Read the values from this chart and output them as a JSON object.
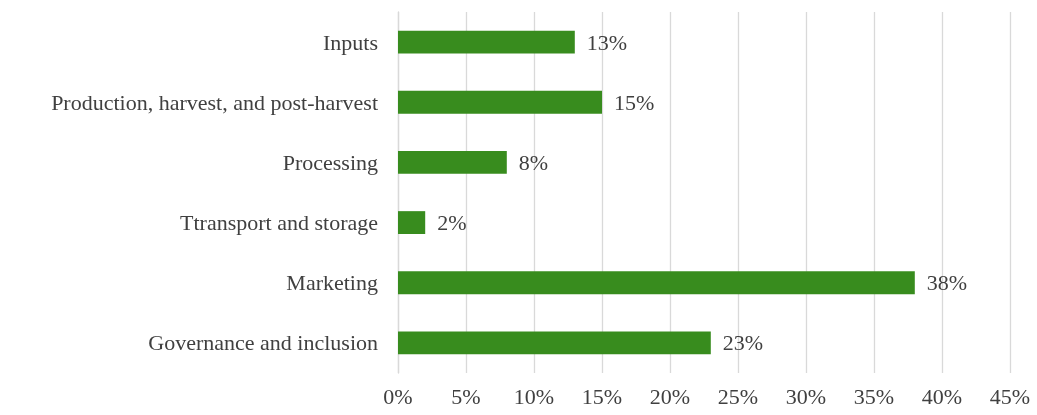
{
  "chart_data": {
    "type": "bar",
    "orientation": "horizontal",
    "categories": [
      "Inputs",
      "Production, harvest, and post-harvest",
      "Processing",
      "Ttransport and storage",
      "Marketing",
      "Governance and inclusion"
    ],
    "values": [
      13,
      15,
      8,
      2,
      38,
      23
    ],
    "value_labels": [
      "13%",
      "15%",
      "8%",
      "2%",
      "38%",
      "23%"
    ],
    "color": "#388c1e",
    "xlim": [
      0,
      45
    ],
    "xticks": [
      {
        "value": 0,
        "label": "0%"
      },
      {
        "value": 5,
        "label": "5%"
      },
      {
        "value": 10,
        "label": "10%"
      },
      {
        "value": 15,
        "label": "15%"
      },
      {
        "value": 20,
        "label": "20%"
      },
      {
        "value": 25,
        "label": "25%"
      },
      {
        "value": 30,
        "label": "30%"
      },
      {
        "value": 35,
        "label": "35%"
      },
      {
        "value": 40,
        "label": "40%"
      },
      {
        "value": 45,
        "label": "45%"
      }
    ],
    "grid": "x"
  }
}
